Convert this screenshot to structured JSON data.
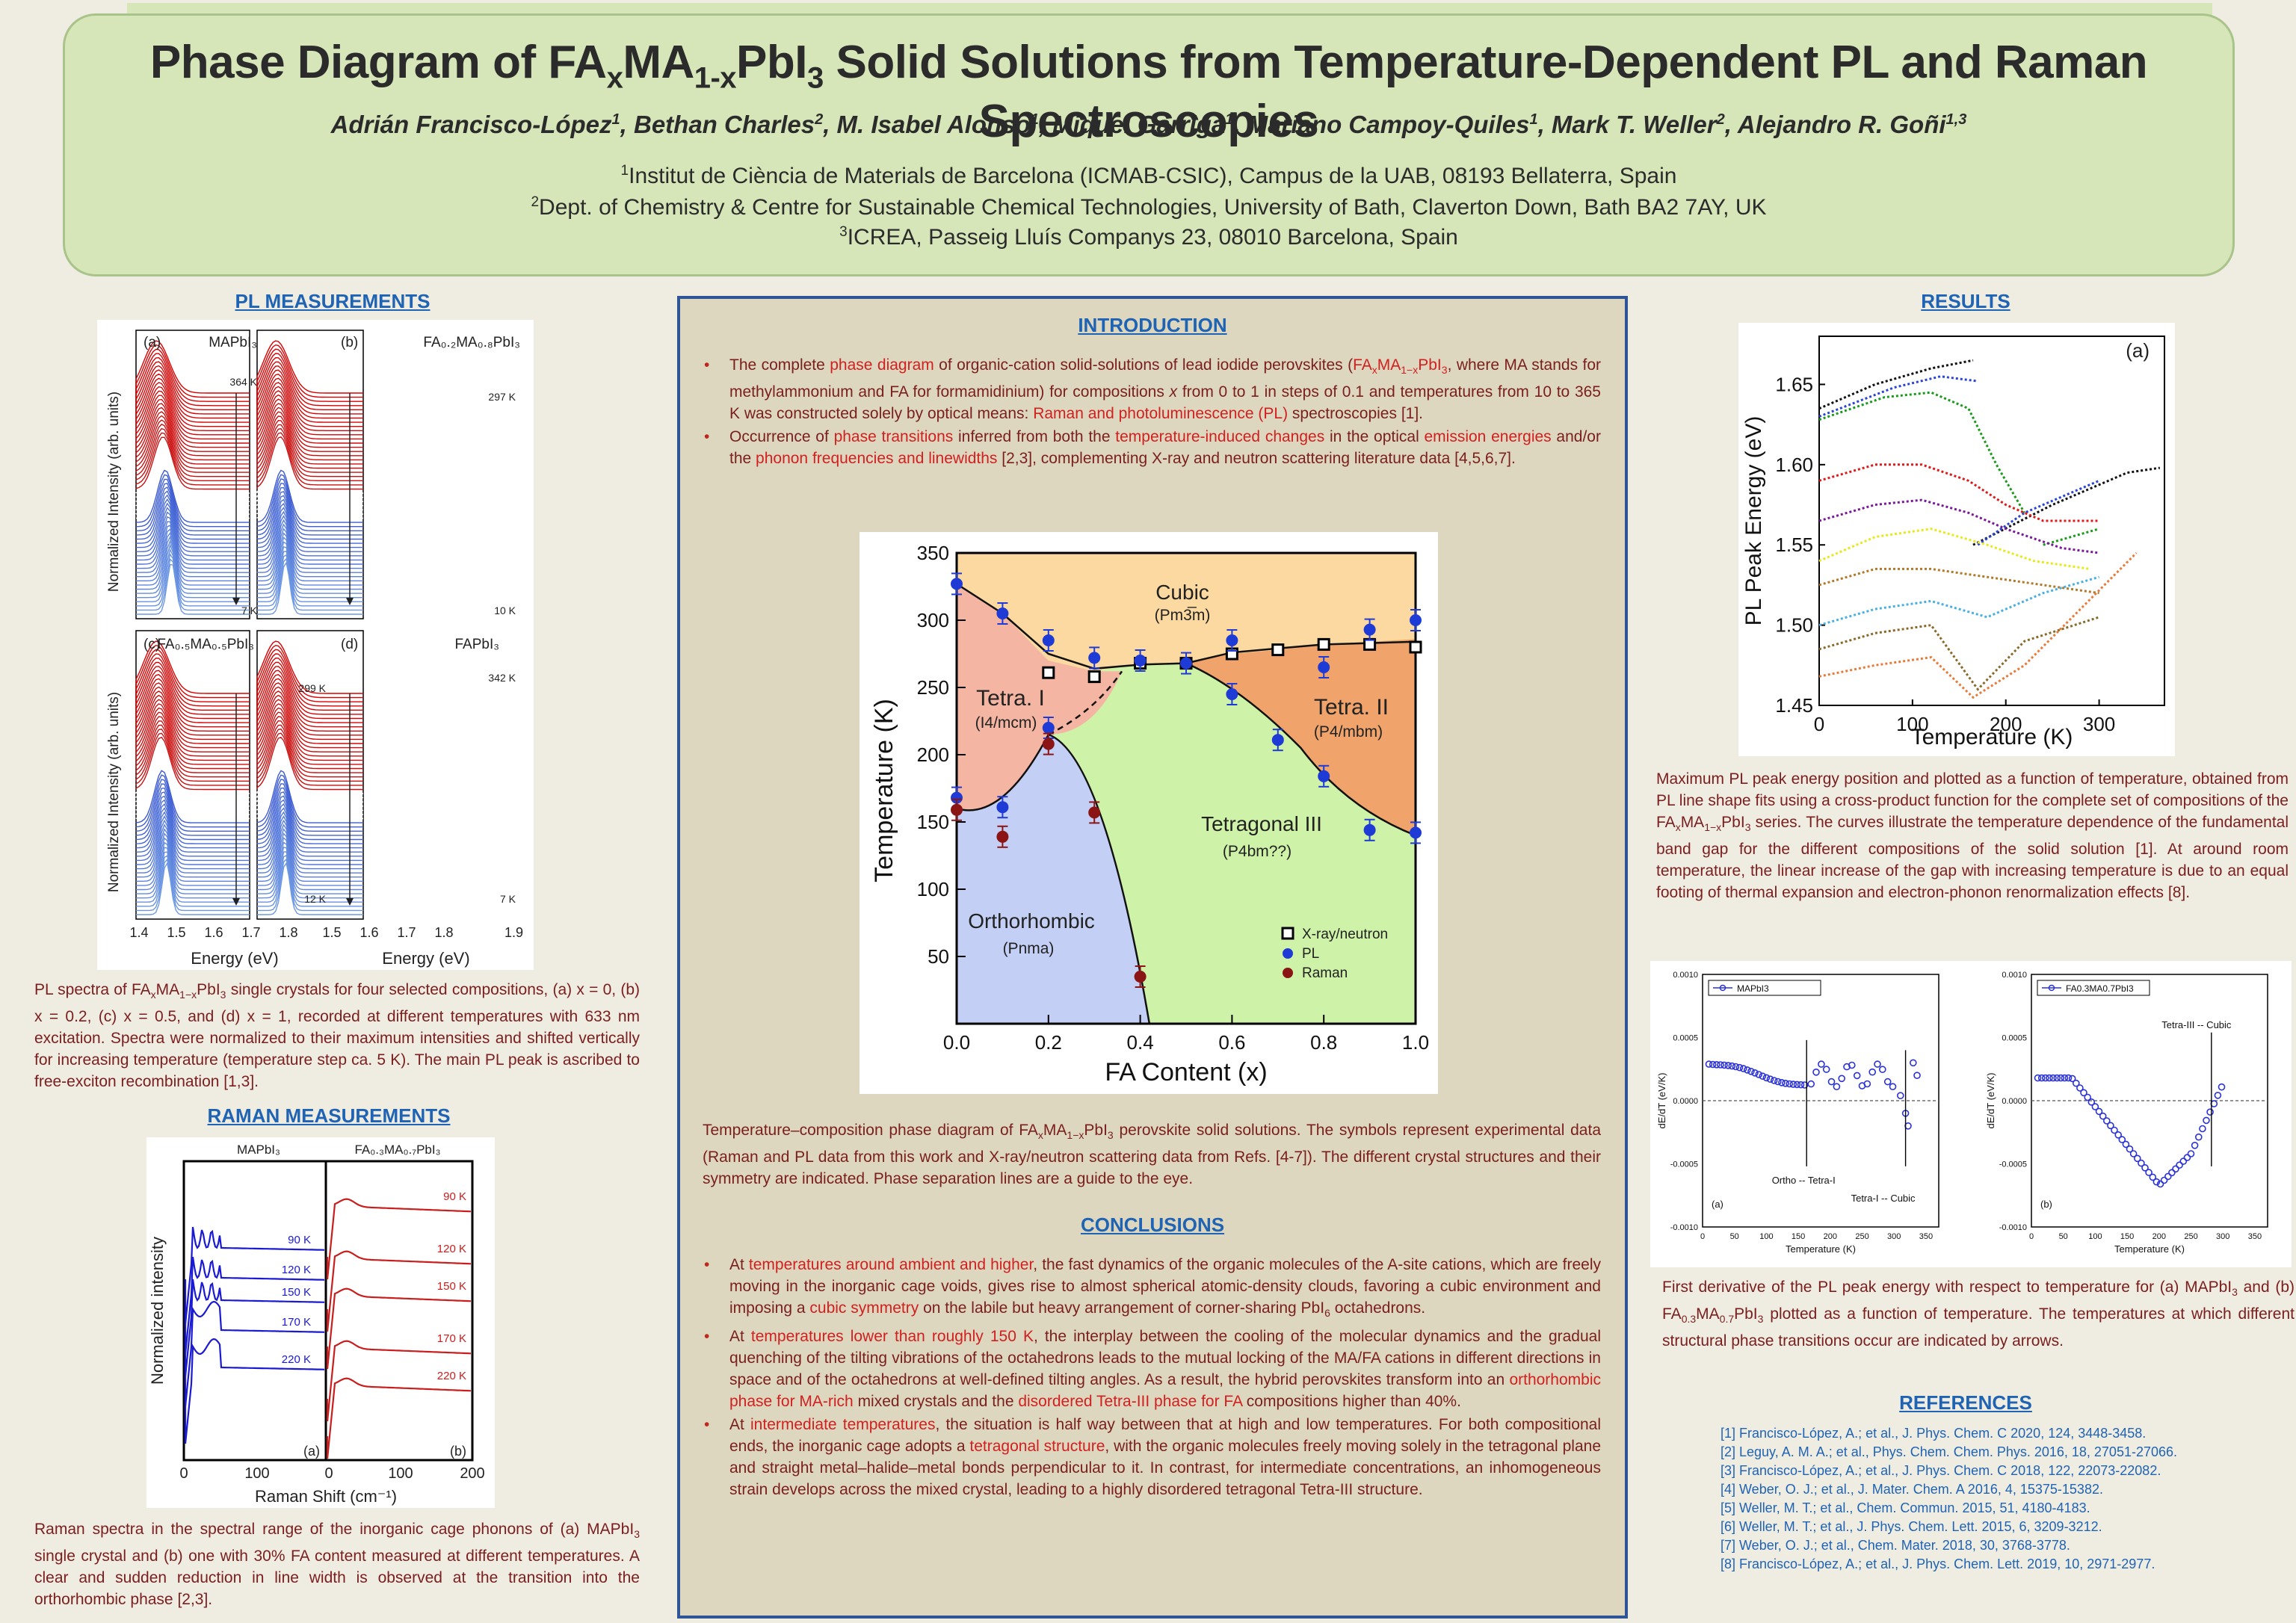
{
  "header": {
    "title_parts": [
      "Phase Diagram of FA",
      "x",
      "MA",
      "1-x",
      "PbI",
      "3",
      " Solid Solutions from Temperature-Dependent PL and Raman Spectroscopies"
    ],
    "authors": [
      {
        "name": "Adrián Francisco-López",
        "sup": "1"
      },
      {
        "name": "Bethan Charles",
        "sup": "2"
      },
      {
        "name": "M. Isabel Alonso",
        "sup": "1"
      },
      {
        "name": "Miquel Garriga",
        "sup": "1"
      },
      {
        "name": "Mariano Campoy-Quiles",
        "sup": "1"
      },
      {
        "name": "Mark T. Weller",
        "sup": "2"
      },
      {
        "name": "Alejandro R. Goñi",
        "sup": "1,3"
      }
    ],
    "affiliations": [
      {
        "sup": "1",
        "text": "Institut de Ciència de Materials de Barcelona (ICMAB-CSIC), Campus de la UAB, 08193 Bellaterra, Spain"
      },
      {
        "sup": "2",
        "text": "Dept. of Chemistry & Centre for Sustainable Chemical Technologies, University of Bath, Claverton Down, Bath BA2 7AY, UK"
      },
      {
        "sup": "3",
        "text": "ICREA, Passeig Lluís Companys 23, 08010 Barcelona, Spain"
      }
    ]
  },
  "pl": {
    "heading": "PL  MEASUREMENTS",
    "ylabel": "Normalized Intensity (arb. units)",
    "xlabel": "Energy (eV)",
    "ticks": [
      "1.4",
      "1.5",
      "1.6",
      "1.7",
      "1.8",
      "1.9"
    ],
    "panels": [
      {
        "letter": "(a)",
        "name": "MAPbI₃",
        "top": "364 K",
        "bottom": "7 K"
      },
      {
        "letter": "(b)",
        "name": "FA₀.₂MA₀.₈PbI₃",
        "top": "297 K",
        "bottom": "10 K"
      },
      {
        "letter": "(c)",
        "name": "FA₀.₅MA₀.₅PbI₃",
        "top": "299 K",
        "bottom": "12 K"
      },
      {
        "letter": "(d)",
        "name": "FAPbI₃",
        "top": "342 K",
        "bottom": "7 K"
      }
    ],
    "caption": "PL spectra of FAxMA1−xPbI3 single crystals for four selected compositions, (a) x = 0, (b) x = 0.2, (c) x = 0.5, and (d) x = 1, recorded at different temperatures with 633 nm excitation. Spectra were normalized to their maximum intensities and shifted vertically for increasing temperature (temperature step ca. 5 K). The main PL peak is ascribed to free-exciton recombination [1,3]."
  },
  "raman": {
    "heading": "RAMAN  MEASUREMENTS",
    "ylabel": "Normalized intensity",
    "xlabel": "Raman Shift (cm⁻¹)",
    "ticks_a": [
      "0",
      "100"
    ],
    "ticks_b": [
      "0",
      "100",
      "200"
    ],
    "title_a": "MAPbI₃",
    "title_b": "FA₀.₃MA₀.₇PbI₃",
    "letter_a": "(a)",
    "letter_b": "(b)",
    "temps_a": [
      "90 K",
      "120 K",
      "150 K",
      "170 K",
      "220 K"
    ],
    "temps_b": [
      "90 K",
      "120 K",
      "150 K",
      "170 K",
      "220 K"
    ],
    "caption": "Raman spectra in the spectral range of the inorganic cage phonons of (a) MAPbI3 single crystal and (b) one with 30% FA content measured at different temperatures. A clear and sudden reduction in line width is observed at the transition into the orthorhombic phase [2,3]."
  },
  "intro": {
    "heading": "INTRODUCTION",
    "bullet1": "The complete phase diagram of organic-cation solid-solutions of lead iodide perovskites (FAxMA1−xPbI3, where MA stands for methylammonium and FA for formamidinium) for compositions x from 0 to 1 in steps of 0.1 and temperatures from 10 to 365 K was constructed solely by optical means: Raman and photoluminescence (PL) spectroscopies [1].",
    "bullet2": "Occurrence of phase transitions inferred from both the temperature-induced changes in the optical emission energies and/or the phonon frequencies and linewidths [2,3], complementing X-ray and neutron scattering literature data [4,5,6,7]."
  },
  "phase_diagram": {
    "xlabel": "FA Content (x)",
    "ylabel": "Temperature (K)",
    "xticks": [
      "0.0",
      "0.2",
      "0.4",
      "0.6",
      "0.8",
      "1.0"
    ],
    "yticks": [
      "50",
      "100",
      "150",
      "200",
      "250",
      "300",
      "350"
    ],
    "regions": {
      "cubic": "Cubic",
      "cubic_sg": "(Pm3̅m)",
      "tetra1": "Tetra. I",
      "tetra1_sg": "(I4/mcm)",
      "tetra2": "Tetra. II",
      "tetra2_sg": "(P4/mbm)",
      "tetra3": "Tetragonal III",
      "tetra3_sg": "(P4bm??)",
      "ortho": "Orthorhombic",
      "ortho_sg": "(Pnma)"
    },
    "legend": [
      "X-ray/neutron",
      "PL",
      "Raman"
    ],
    "caption": "Temperature–composition phase diagram of FAxMA1−xPbI3 perovskite solid solutions. The symbols represent experimental data (Raman and PL data from this work and X-ray/neutron scattering data from Refs. [4-7]). The different crystal structures and their symmetry are indicated. Phase separation lines are a guide to the eye.",
    "colors": {
      "cubic": "#fcd9a0",
      "tetra1": "#f4b5a3",
      "tetra2": "#f0a46c",
      "tetra3": "#cdf2a8",
      "ortho": "#c3cff4",
      "pl": "#1f3bd6",
      "raman": "#8b1414"
    }
  },
  "chart_data": [
    {
      "type": "scatter",
      "title": "",
      "xlabel": "FA Content (x)",
      "ylabel": "Temperature (K)",
      "xlim": [
        0,
        1
      ],
      "ylim": [
        0,
        350
      ],
      "series": [
        {
          "name": "X-ray/neutron",
          "x": [
            0.2,
            0.3,
            0.4,
            0.5,
            0.6,
            0.7,
            0.8,
            0.9,
            1.0
          ],
          "y": [
            261,
            258,
            268,
            268,
            275,
            278,
            282,
            282,
            280
          ]
        },
        {
          "name": "PL",
          "x": [
            0.0,
            0.0,
            0.1,
            0.1,
            0.2,
            0.2,
            0.3,
            0.4,
            0.5,
            0.6,
            0.6,
            0.7,
            0.8,
            0.8,
            0.9,
            0.9,
            1.0,
            1.0
          ],
          "y": [
            327,
            168,
            305,
            161,
            285,
            220,
            272,
            270,
            268,
            285,
            245,
            211,
            265,
            184,
            293,
            144,
            300,
            142
          ]
        },
        {
          "name": "Raman",
          "x": [
            0.0,
            0.1,
            0.2,
            0.3,
            0.4
          ],
          "y": [
            159,
            139,
            208,
            157,
            35
          ]
        }
      ]
    },
    {
      "type": "line",
      "title": "",
      "xlabel": "Temperature (K)",
      "ylabel": "PL Peak Energy (eV)",
      "xlim": [
        0,
        370
      ],
      "ylim": [
        1.45,
        1.68
      ],
      "xticks": [
        "0",
        "100",
        "200",
        "300"
      ],
      "yticks": [
        "1.45",
        "1.50",
        "1.55",
        "1.60",
        "1.65"
      ],
      "panel": "(a)"
    },
    {
      "type": "scatter",
      "title": "",
      "xlabel": "Temperature (K)",
      "ylabel": "dE/dT (eV/K)",
      "xlim": [
        0,
        370
      ],
      "ylim": [
        -0.001,
        0.001
      ],
      "legend": "MAPbI3",
      "panel": "(a)",
      "annotations": [
        "Ortho -- Tetra-I",
        "Tetra-I -- Cubic"
      ]
    },
    {
      "type": "scatter",
      "title": "",
      "xlabel": "Temperature (K)",
      "ylabel": "dE/dT (eV/K)",
      "xlim": [
        0,
        370
      ],
      "ylim": [
        -0.001,
        0.001
      ],
      "legend": "FA0.3MA0.7PbI3",
      "panel": "(b)",
      "annotations": [
        "Tetra-III -- Cubic"
      ]
    }
  ],
  "conclusions": {
    "heading": "CONCLUSIONS",
    "bullet1": "At temperatures around ambient and higher, the fast dynamics of the organic molecules of the A-site cations, which are freely moving in the inorganic cage voids, gives rise to almost spherical atomic-density clouds, favoring a cubic environment and imposing a cubic symmetry on the labile but heavy arrangement of corner-sharing PbI6 octahedrons.",
    "bullet2": "At temperatures lower than roughly 150 K, the interplay between the cooling of the molecular dynamics and the gradual quenching of the tilting vibrations of the octahedrons leads to the mutual locking of the MA/FA cations in different directions in space and of the octahedrons at well-defined tilting angles. As a result, the hybrid perovskites transform into an orthorhombic phase for MA-rich mixed crystals and the disordered Tetra-III phase for FA compositions higher than 40%.",
    "bullet3": "At intermediate temperatures, the situation is half way between that at high and low temperatures. For both compositional ends, the inorganic cage adopts a tetragonal structure, with the organic molecules freely moving solely in the tetragonal plane and straight metal–halide–metal bonds perpendicular to it. In contrast, for intermediate concentrations, an inhomogeneous strain develops across the mixed crystal, leading to a highly disordered tetragonal Tetra-III structure."
  },
  "results": {
    "heading": "RESULTS",
    "fig1_xlabel": "Temperature (K)",
    "fig1_ylabel": "PL Peak Energy (eV)",
    "fig1_panel": "(a)",
    "fig1_xticks": [
      "0",
      "100",
      "200",
      "300"
    ],
    "fig1_yticks": [
      "1.45",
      "1.50",
      "1.55",
      "1.60",
      "1.65"
    ],
    "caption1": "Maximum PL peak energy position and plotted as a function of temperature, obtained from PL line shape fits using a cross-product function for the complete set of compositions of the FAxMA1−xPbI3 series. The curves illustrate the temperature dependence of the fundamental band gap for the different compositions of the solid solution [1]. At around room temperature, the linear increase of the gap with increasing temperature is due to an equal footing of thermal expansion and electron-phonon renormalization effects [8].",
    "deriv_xlabel": "Temperature (K)",
    "deriv_ylabel": "dE/dT  (eV/K)",
    "deriv_yticks": [
      "0.0010",
      "0.0005",
      "0.0000",
      "-0.0005",
      "-0.0010"
    ],
    "deriv_xticks": [
      "0",
      "50",
      "100",
      "150",
      "200",
      "250",
      "300",
      "350"
    ],
    "deriv_a_legend": "MAPbI3",
    "deriv_b_legend": "FA0.3MA0.7PbI3",
    "deriv_a_letter": "(a)",
    "deriv_b_letter": "(b)",
    "deriv_a_ann1": "Ortho -- Tetra-I",
    "deriv_a_ann2": "Tetra-I -- Cubic",
    "deriv_b_ann1": "Tetra-III -- Cubic",
    "caption2": "First derivative of the PL peak energy with respect to temperature for (a) MAPbI3 and (b) FA0.3MA0.7PbI3 plotted as a function of temperature. The temperatures at which different structural phase transitions occur are indicated by arrows."
  },
  "references": {
    "heading": "REFERENCES",
    "items": [
      "[1] Francisco-López, A.; et al., J. Phys. Chem. C 2020, 124, 3448-3458.",
      "[2] Leguy, A. M. A.; et al., Phys. Chem. Chem. Phys. 2016, 18, 27051-27066.",
      "[3] Francisco-López, A.; et al., J. Phys. Chem. C 2018, 122, 22073-22082.",
      "[4] Weber, O. J.; et al., J. Mater. Chem. A 2016, 4, 15375-15382.",
      "[5] Weller, M. T.; et al., Chem. Commun. 2015, 51, 4180-4183.",
      "[6] Weller, M. T.; et al., J. Phys. Chem. Lett. 2015, 6, 3209-3212.",
      "[7] Weber, O. J.; et al., Chem. Mater. 2018, 30, 3768-3778.",
      "[8] Francisco-López, A.; et al., J. Phys. Chem. Lett. 2019, 10, 2971-2977."
    ]
  }
}
